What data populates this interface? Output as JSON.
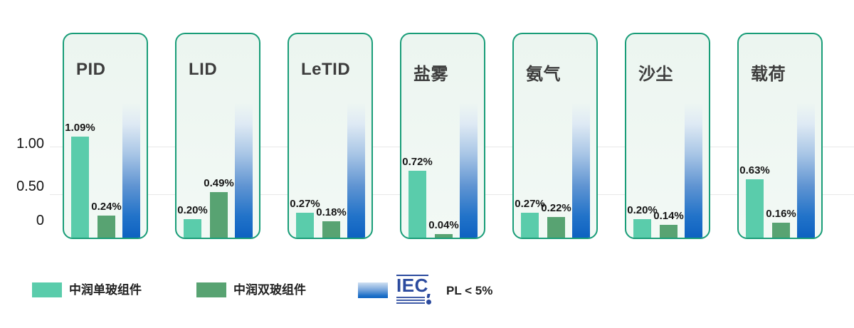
{
  "chart_data": {
    "type": "bar",
    "title": "",
    "categories": [
      "PID",
      "LID",
      "LeTID",
      "盐雾",
      "氨气",
      "沙尘",
      "载荷"
    ],
    "series": [
      {
        "name": "中润单玻组件",
        "values": [
          1.09,
          0.2,
          0.27,
          0.72,
          0.27,
          0.2,
          0.63
        ],
        "labels": [
          "1.09%",
          "0.20%",
          "0.27%",
          "0.72%",
          "0.27%",
          "0.20%",
          "0.63%"
        ],
        "color": "#5accab"
      },
      {
        "name": "中润双玻组件",
        "values": [
          0.24,
          0.49,
          0.18,
          0.04,
          0.22,
          0.14,
          0.16
        ],
        "labels": [
          "0.24%",
          "0.49%",
          "0.18%",
          "0.04%",
          "0.22%",
          "0.14%",
          "0.16%"
        ],
        "color": "#58a372"
      },
      {
        "name": "IEC PL < 5%",
        "kind": "reference-band",
        "color_bottom": "#0d62c1",
        "color_top": "fades into panel background above chart top"
      }
    ],
    "yticks": [
      "1.00",
      "0.50",
      "0"
    ],
    "ylim": [
      0,
      1.45
    ],
    "grid": "horizontal gridlines at 0.50 and 1.00",
    "legend_position": "bottom-left"
  },
  "legend": {
    "items": [
      {
        "label": "中润单玻组件",
        "swatch_color": "#5accab"
      },
      {
        "label": "中润双玻组件",
        "swatch_color": "#58a372"
      },
      {
        "label": "PL < 5%",
        "logo_text": "IEC",
        "swatch_gradient": [
          "#cfe0f2",
          "#0f63c1"
        ]
      }
    ]
  },
  "colors": {
    "panel_border": "#199d78",
    "panel_bg": "#eff6f2",
    "single_glass_bar": "#5accab",
    "double_glass_bar": "#58a372",
    "iec_blue": "#0d62c1",
    "iec_logo_blue": "#2b4a9e",
    "gridline": "#e8e8e8",
    "title_text": "#3d3d3d"
  }
}
